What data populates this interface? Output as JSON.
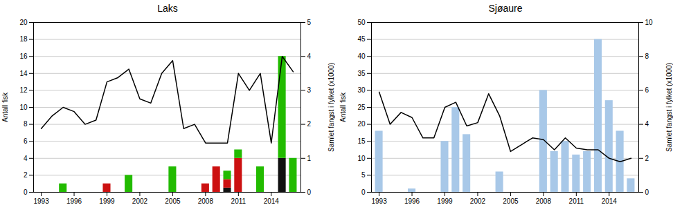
{
  "chart_data": [
    {
      "type": "bar",
      "title": "Laks",
      "stacked": true,
      "grid": true,
      "x": [
        1993,
        1994,
        1995,
        1996,
        1997,
        1998,
        1999,
        2000,
        2001,
        2002,
        2003,
        2004,
        2005,
        2006,
        2007,
        2008,
        2009,
        2010,
        2011,
        2012,
        2013,
        2014,
        2015,
        2016
      ],
      "series": [
        {
          "type": "bar",
          "color": "#111111",
          "values": [
            0,
            0,
            0,
            0,
            0,
            0,
            0,
            0,
            0,
            0,
            0,
            0,
            0,
            0,
            0,
            0,
            0,
            0.5,
            0,
            0,
            0,
            0,
            4,
            0
          ]
        },
        {
          "type": "bar",
          "color": "#cc1111",
          "values": [
            0,
            0,
            0,
            0,
            0,
            0,
            1,
            0,
            0,
            0,
            0,
            0,
            0,
            0,
            0,
            1,
            3,
            1,
            4,
            0,
            0,
            0,
            0,
            0
          ]
        },
        {
          "type": "bar",
          "color": "#22bb00",
          "values": [
            0,
            0,
            1,
            0,
            0,
            0,
            0,
            0,
            2,
            0,
            0,
            0,
            3,
            0,
            0,
            0,
            0,
            1,
            1,
            0,
            3,
            0,
            12,
            4
          ]
        },
        {
          "type": "line",
          "color": "#000000",
          "values": [
            7.5,
            9,
            10,
            9.5,
            8,
            8.5,
            13,
            13.5,
            14.5,
            11,
            10.5,
            14,
            15.5,
            7.5,
            8,
            5.8,
            5.8,
            5.8,
            14,
            12,
            14,
            5.8,
            16,
            14.2
          ]
        }
      ],
      "xlim": [
        1992.3,
        2016.7
      ],
      "xticks": [
        1993,
        1996,
        1999,
        2002,
        2005,
        2008,
        2011,
        2014
      ],
      "ylabel": "Antall fisk",
      "ylim": [
        0,
        20
      ],
      "yticks": [
        0,
        2,
        4,
        6,
        8,
        10,
        12,
        14,
        16,
        18,
        20
      ],
      "y2label": "Samlet fangst i fylket (x1000)",
      "y2lim": [
        0,
        5
      ],
      "y2ticks": [
        0,
        1,
        2,
        3,
        4,
        5
      ]
    },
    {
      "type": "bar",
      "title": "Sjøaure",
      "grid": true,
      "x": [
        1993,
        1994,
        1995,
        1996,
        1997,
        1998,
        1999,
        2000,
        2001,
        2002,
        2003,
        2004,
        2005,
        2006,
        2007,
        2008,
        2009,
        2010,
        2011,
        2012,
        2013,
        2014,
        2015,
        2016
      ],
      "series": [
        {
          "type": "bar",
          "color": "#a8c8e8",
          "values": [
            18,
            0,
            0,
            1,
            0,
            0,
            15,
            25,
            17,
            0,
            0,
            6,
            0,
            0,
            0,
            30,
            12,
            15,
            11,
            12,
            45,
            27,
            18,
            4
          ]
        },
        {
          "type": "line",
          "color": "#000000",
          "values": [
            29.5,
            20,
            23.5,
            22,
            16,
            16,
            25,
            26.5,
            19.5,
            20.5,
            29,
            22.5,
            12,
            14,
            16,
            15.5,
            12.5,
            16,
            13,
            12.5,
            12.5,
            10,
            9,
            10
          ]
        }
      ],
      "xlim": [
        1992.3,
        2016.7
      ],
      "xticks": [
        1993,
        1996,
        1999,
        2002,
        2005,
        2008,
        2011,
        2014
      ],
      "ylabel": "Antall fisk",
      "ylim": [
        0,
        50
      ],
      "yticks": [
        0,
        5,
        10,
        15,
        20,
        25,
        30,
        35,
        40,
        45,
        50
      ],
      "y2label": "Samlet fangst i fylket (x1000)",
      "y2lim": [
        0,
        10
      ],
      "y2ticks": [
        0,
        2,
        4,
        6,
        8,
        10
      ]
    }
  ]
}
